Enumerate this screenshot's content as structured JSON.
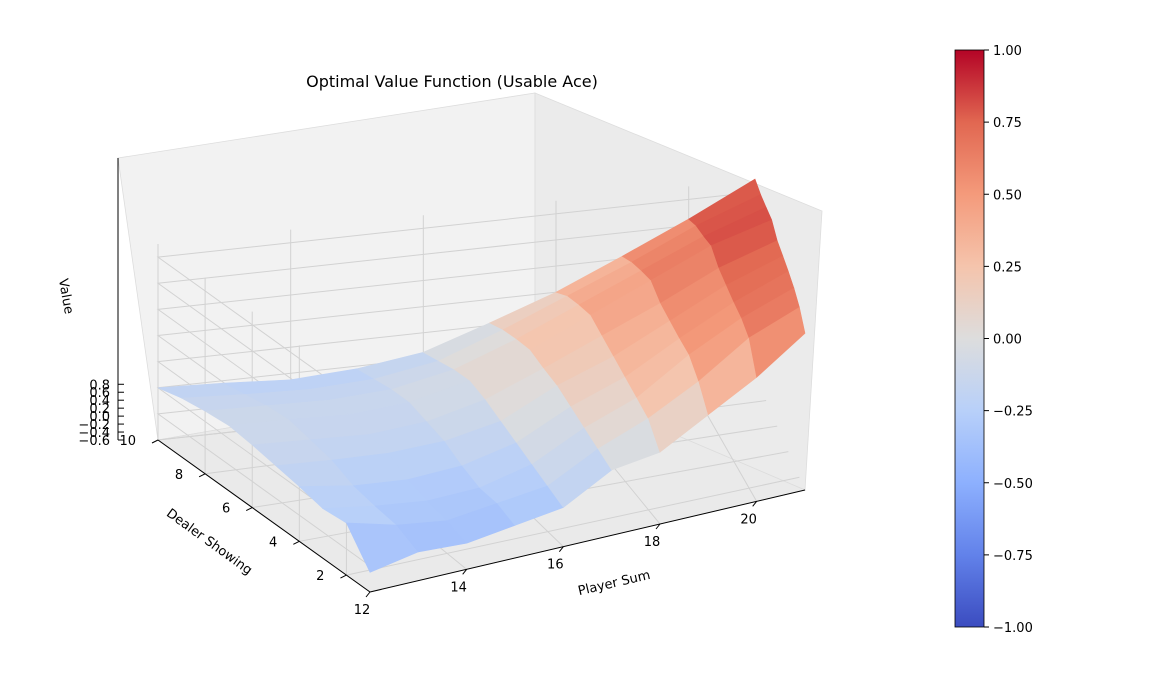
{
  "chart_data": {
    "type": "surface3d",
    "title": "Optimal Value Function (Usable Ace)",
    "xlabel": "Player Sum",
    "ylabel": "Dealer Showing",
    "zlabel": "Value",
    "x": [
      12,
      13,
      14,
      15,
      16,
      17,
      18,
      19,
      20,
      21
    ],
    "y": [
      1,
      2,
      3,
      4,
      5,
      6,
      7,
      8,
      9,
      10
    ],
    "xticks": [
      "12",
      "14",
      "16",
      "18",
      "20"
    ],
    "yticks": [
      "2",
      "4",
      "6",
      "8",
      "10"
    ],
    "zticks": [
      "−0.6",
      "−0.4",
      "−0.2",
      "0.0",
      "0.2",
      "0.4",
      "0.6",
      "0.8"
    ],
    "zlim": [
      -0.6,
      0.9
    ],
    "colormap": "coolwarm",
    "colorbar": {
      "min": -1.0,
      "max": 1.0,
      "ticks": [
        "1.00",
        "0.75",
        "0.50",
        "0.25",
        "0.00",
        "−0.25",
        "−0.50",
        "−0.75",
        "−1.00"
      ]
    },
    "z": [
      [
        -0.45,
        -0.38,
        -0.4,
        -0.35,
        -0.3,
        -0.1,
        -0.05,
        0.15,
        0.35,
        0.6
      ],
      [
        -0.2,
        -0.3,
        -0.35,
        -0.3,
        -0.25,
        -0.05,
        0.1,
        0.3,
        0.55,
        0.7
      ],
      [
        -0.22,
        -0.28,
        -0.32,
        -0.3,
        -0.2,
        0.0,
        0.15,
        0.4,
        0.6,
        0.75
      ],
      [
        -0.18,
        -0.25,
        -0.28,
        -0.25,
        -0.15,
        0.05,
        0.2,
        0.42,
        0.62,
        0.78
      ],
      [
        -0.15,
        -0.18,
        -0.2,
        -0.18,
        -0.1,
        0.1,
        0.25,
        0.45,
        0.65,
        0.8
      ],
      [
        -0.12,
        -0.15,
        -0.18,
        -0.15,
        -0.05,
        0.12,
        0.3,
        0.48,
        0.68,
        0.82
      ],
      [
        -0.1,
        -0.12,
        -0.15,
        -0.12,
        -0.02,
        0.15,
        0.35,
        0.55,
        0.75,
        0.88
      ],
      [
        -0.12,
        -0.14,
        -0.16,
        -0.14,
        -0.05,
        0.12,
        0.32,
        0.52,
        0.72,
        0.88
      ],
      [
        -0.15,
        -0.18,
        -0.2,
        -0.18,
        -0.1,
        0.08,
        0.28,
        0.48,
        0.7,
        0.88
      ],
      [
        -0.2,
        -0.22,
        -0.25,
        -0.22,
        -0.15,
        0.02,
        0.2,
        0.42,
        0.65,
        0.9
      ]
    ]
  }
}
